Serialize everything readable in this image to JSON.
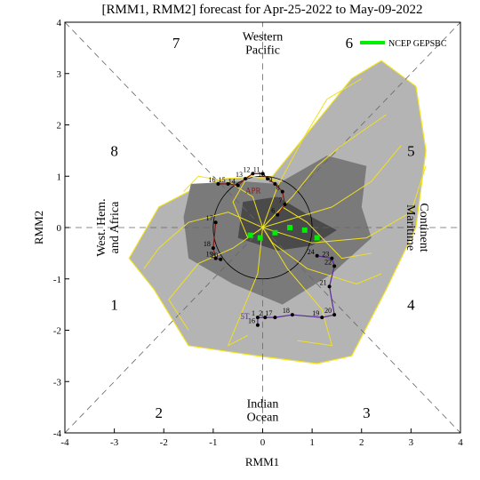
{
  "chart_data": {
    "type": "line",
    "title": "[RMM1, RMM2] forecast for Apr-25-2022 to May-09-2022",
    "xlabel": "RMM1",
    "ylabel": "RMM2",
    "xlim": [
      -4,
      4
    ],
    "ylim": [
      -4,
      4
    ],
    "xticks": [
      "-4",
      "-3",
      "-2",
      "-1",
      "0",
      "1",
      "2",
      "3",
      "4"
    ],
    "yticks": [
      "-4",
      "-3",
      "-2",
      "-1",
      "0",
      "1",
      "2",
      "3",
      "4"
    ],
    "grid": false,
    "legend_position": "top-right",
    "legend": [
      {
        "name": "NCEP GEPSBC",
        "color": "#00ee00"
      }
    ],
    "phases": [
      {
        "label": "1",
        "x": -3.0,
        "y": -1.5
      },
      {
        "label": "2",
        "x": -2.1,
        "y": -3.6
      },
      {
        "label": "3",
        "x": 2.1,
        "y": -3.6
      },
      {
        "label": "4",
        "x": 3.0,
        "y": -1.5
      },
      {
        "label": "5",
        "x": 3.0,
        "y": 1.5
      },
      {
        "label": "6",
        "x": 1.75,
        "y": 3.6
      },
      {
        "label": "7",
        "x": -1.75,
        "y": 3.6
      },
      {
        "label": "8",
        "x": -3.0,
        "y": 1.5
      }
    ],
    "regions": [
      {
        "lines": [
          "Western",
          "Pacific"
        ],
        "x": 0.0,
        "y": 3.6
      },
      {
        "lines": [
          "Indian",
          "Ocean"
        ],
        "x": 0.0,
        "y": -3.55
      },
      {
        "lines": [
          "West. Hem.",
          "and Africa"
        ],
        "x": -3.15,
        "y": 0.0,
        "rotate": -90
      },
      {
        "lines": [
          "Maritime",
          "Continent"
        ],
        "x": 3.15,
        "y": 0.0,
        "rotate": 90
      }
    ],
    "colors": {
      "outer_spread": "#b4b4b4",
      "inner_spread": "#7a7a7a",
      "core_spread": "#4a4a4a",
      "ensemble": "#f0e020",
      "observed_april": "#8b1a1a",
      "observed_may": "#5a2a9a",
      "ensemble_mean": "#00ee00",
      "unit_circle": "#000000"
    },
    "outer_spread": [
      [
        -2.1,
        0.4
      ],
      [
        -1.5,
        0.7
      ],
      [
        -0.8,
        0.95
      ],
      [
        0.2,
        1.0
      ],
      [
        1.8,
        2.9
      ],
      [
        2.4,
        3.25
      ],
      [
        3.1,
        2.75
      ],
      [
        3.3,
        1.5
      ],
      [
        3.1,
        0.0
      ],
      [
        2.5,
        -1.2
      ],
      [
        1.8,
        -2.5
      ],
      [
        1.1,
        -2.65
      ],
      [
        -0.1,
        -2.5
      ],
      [
        -1.5,
        -2.3
      ],
      [
        -2.2,
        -1.2
      ],
      [
        -2.7,
        -0.6
      ]
    ],
    "inner_spread": [
      [
        -1.45,
        0.85
      ],
      [
        -0.4,
        0.9
      ],
      [
        0.3,
        0.85
      ],
      [
        1.3,
        1.4
      ],
      [
        2.1,
        1.2
      ],
      [
        2.0,
        0.4
      ],
      [
        2.2,
        -0.2
      ],
      [
        1.4,
        -0.9
      ],
      [
        0.4,
        -1.5
      ],
      [
        -0.6,
        -1.1
      ],
      [
        -1.5,
        -0.6
      ],
      [
        -1.6,
        0.2
      ]
    ],
    "core_spread": [
      [
        -0.4,
        0.5
      ],
      [
        0.3,
        0.6
      ],
      [
        1.0,
        0.2
      ],
      [
        1.5,
        -0.05
      ],
      [
        1.0,
        -0.35
      ],
      [
        0.3,
        -0.45
      ],
      [
        -0.5,
        -0.2
      ]
    ],
    "ensemble_members": [
      [
        [
          0,
          0
        ],
        [
          0.3,
          0.8
        ],
        [
          0.8,
          1.7
        ],
        [
          1.3,
          2.5
        ],
        [
          2.0,
          2.9
        ]
      ],
      [
        [
          0,
          0
        ],
        [
          0.7,
          0.2
        ],
        [
          1.4,
          0.4
        ],
        [
          2.2,
          0.9
        ],
        [
          2.8,
          1.6
        ]
      ],
      [
        [
          0,
          0
        ],
        [
          1.0,
          -0.3
        ],
        [
          2.1,
          -0.2
        ],
        [
          3.0,
          0.3
        ],
        [
          3.3,
          1.2
        ]
      ],
      [
        [
          0,
          0
        ],
        [
          0.5,
          -0.8
        ],
        [
          1.2,
          -1.6
        ],
        [
          1.4,
          -2.3
        ],
        [
          0.7,
          -2.2
        ]
      ],
      [
        [
          0,
          0
        ],
        [
          -0.1,
          -0.9
        ],
        [
          -0.4,
          -1.6
        ],
        [
          -0.7,
          -2.3
        ],
        [
          -0.3,
          -2.1
        ]
      ],
      [
        [
          0,
          0
        ],
        [
          -0.6,
          -0.4
        ],
        [
          -1.3,
          -0.7
        ],
        [
          -1.9,
          -1.4
        ],
        [
          -1.5,
          -2.0
        ]
      ],
      [
        [
          0,
          0
        ],
        [
          -0.7,
          0.3
        ],
        [
          -1.5,
          0.1
        ],
        [
          -2.1,
          -0.4
        ],
        [
          -2.4,
          -0.8
        ]
      ],
      [
        [
          0,
          0
        ],
        [
          -0.2,
          0.6
        ],
        [
          -0.7,
          0.9
        ],
        [
          -1.3,
          1.0
        ],
        [
          -1.6,
          0.7
        ]
      ],
      [
        [
          0,
          0
        ],
        [
          0.4,
          0.4
        ],
        [
          0.9,
          0.1
        ],
        [
          1.6,
          -0.6
        ],
        [
          2.2,
          -0.5
        ]
      ],
      [
        [
          0,
          0
        ],
        [
          0.2,
          -0.3
        ],
        [
          0.9,
          -0.8
        ],
        [
          1.9,
          -1.1
        ],
        [
          2.4,
          -0.9
        ]
      ],
      [
        [
          0,
          0
        ],
        [
          -0.3,
          -0.2
        ],
        [
          -0.6,
          0.5
        ],
        [
          -0.3,
          1.0
        ],
        [
          0.4,
          0.9
        ]
      ],
      [
        [
          0,
          0
        ],
        [
          0.6,
          0.6
        ],
        [
          1.1,
          1.2
        ],
        [
          1.6,
          1.6
        ],
        [
          2.5,
          2.2
        ]
      ]
    ],
    "observed_april": {
      "points": [
        [
          -0.9,
          0.85
        ],
        [
          -0.7,
          0.85
        ],
        [
          -0.5,
          0.82
        ],
        [
          -0.35,
          0.95
        ],
        [
          -0.2,
          1.05
        ],
        [
          0.0,
          1.05
        ],
        [
          0.1,
          0.95
        ],
        [
          0.25,
          0.85
        ],
        [
          0.4,
          0.7
        ],
        [
          0.45,
          0.45
        ],
        [
          0.3,
          0.25
        ]
      ],
      "labels": [
        "16",
        "15",
        "14",
        "13",
        "12",
        "11",
        "10",
        "9",
        "8",
        "7",
        "6"
      ],
      "annotation": "APR"
    },
    "observed_start": {
      "points": [
        [
          -0.95,
          0.1
        ],
        [
          -1.0,
          -0.4
        ],
        [
          -0.95,
          -0.6
        ],
        [
          -0.85,
          -0.62
        ]
      ],
      "labels": [
        "17",
        "18",
        "19",
        "20"
      ]
    },
    "observed_may": {
      "points": [
        [
          1.1,
          -0.55
        ],
        [
          1.4,
          -0.6
        ],
        [
          1.45,
          -0.75
        ],
        [
          1.35,
          -1.15
        ],
        [
          1.45,
          -1.7
        ],
        [
          1.2,
          -1.75
        ],
        [
          0.6,
          -1.7
        ],
        [
          0.25,
          -1.75
        ],
        [
          0.05,
          -1.75
        ],
        [
          -0.1,
          -1.75
        ],
        [
          -0.1,
          -1.9
        ]
      ],
      "labels": [
        "24",
        "23",
        "22",
        "21",
        "20",
        "19",
        "18",
        "17",
        "2",
        "1",
        "16"
      ],
      "annotation": "5T"
    }
  }
}
